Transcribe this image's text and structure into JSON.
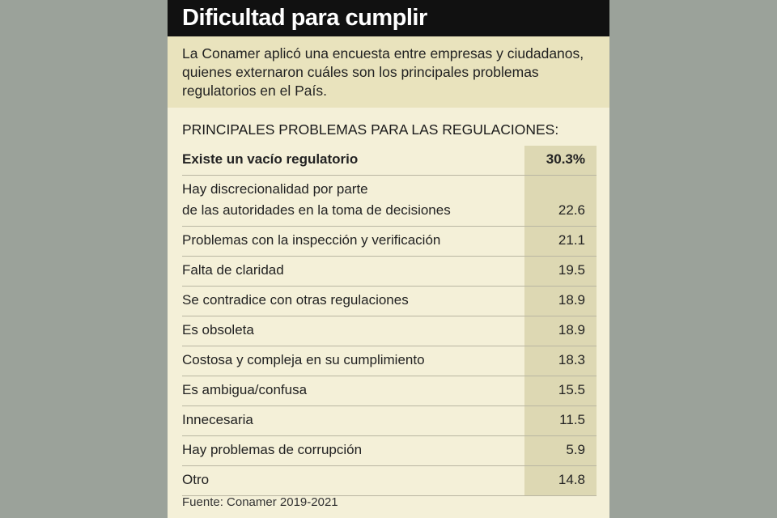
{
  "header": {
    "title": "Dificultad para cumplir",
    "intro": "La Conamer aplicó una encuesta entre empresas y ciudadanos, quienes externaron cuáles son  los principales problemas regulatorios en el País."
  },
  "table": {
    "heading": "PRINCIPALES PROBLEMAS PARA LAS REGULACIONES:",
    "rows": [
      [
        "Existe un vacío regulatorio",
        "30.3%"
      ],
      [
        "Hay discrecionalidad por parte\nde las autoridades en la toma de decisiones",
        "22.6"
      ],
      [
        "Problemas con la inspección y verificación",
        "21.1"
      ],
      [
        "Falta de claridad",
        "19.5"
      ],
      [
        "Se contradice con otras regulaciones",
        "18.9"
      ],
      [
        "Es obsoleta",
        "18.9"
      ],
      [
        "Costosa y compleja en su cumplimiento",
        "18.3"
      ],
      [
        "Es ambigua/confusa",
        "15.5"
      ],
      [
        "Innecesaria",
        "11.5"
      ],
      [
        "Hay problemas de corrupción",
        "5.9"
      ],
      [
        "Otro",
        "14.8"
      ]
    ]
  },
  "footer": {
    "source": "Fuente: Conamer 2019-2021"
  }
}
